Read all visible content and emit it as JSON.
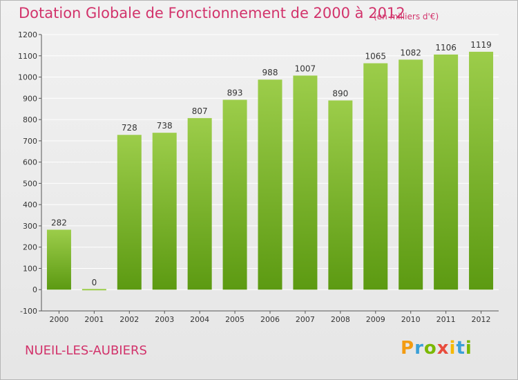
{
  "title": "Dotation Globale de Fonctionnement de 2000 à 2012",
  "subtitle": "(en milliers d'€)",
  "town": "NUEIL-LES-AUBIERS",
  "logo": {
    "letters": [
      "P",
      "r",
      "o",
      "x",
      "i",
      "t",
      "i"
    ],
    "colors": [
      "#f39c12",
      "#3aa0d8",
      "#7ab800",
      "#e84c3d",
      "#f5b800",
      "#3aa0d8",
      "#7ab800"
    ]
  },
  "chart_data": {
    "type": "bar",
    "categories": [
      "2000",
      "2001",
      "2002",
      "2003",
      "2004",
      "2005",
      "2006",
      "2007",
      "2008",
      "2009",
      "2010",
      "2011",
      "2012"
    ],
    "values": [
      282,
      0,
      728,
      738,
      807,
      893,
      988,
      1007,
      890,
      1065,
      1082,
      1106,
      1119
    ],
    "title": "Dotation Globale de Fonctionnement de 2000 à 2012",
    "ylabel": "",
    "xlabel": "",
    "ylim": [
      -100,
      1200
    ],
    "yticks": [
      -100,
      0,
      100,
      200,
      300,
      400,
      500,
      600,
      700,
      800,
      900,
      1000,
      1100,
      1200
    ],
    "grid": true,
    "bar_color_top": "#9ccd4a",
    "bar_color_bottom": "#5c9a12",
    "grid_color": "#ffffff"
  }
}
